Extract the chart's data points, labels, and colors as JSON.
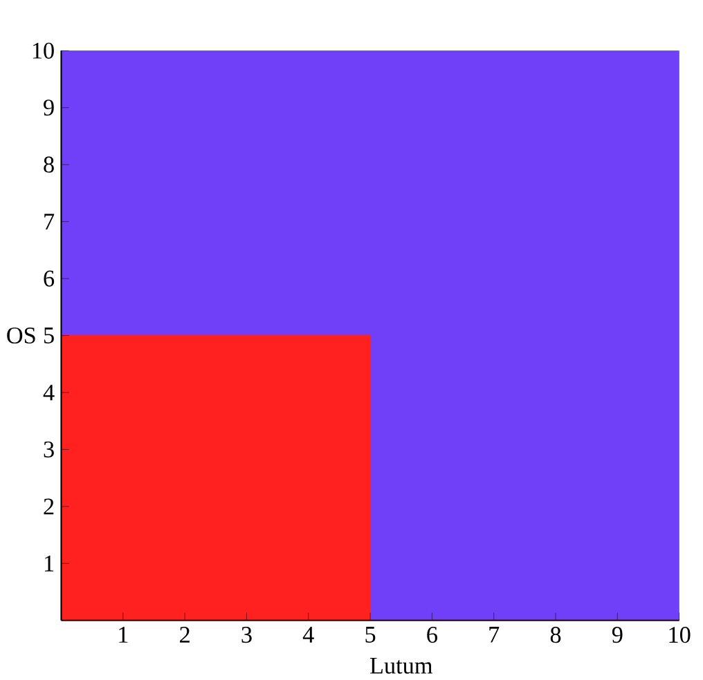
{
  "chart_data": {
    "type": "area",
    "stacked": true,
    "xlabel": "Lutum",
    "ylabel": "OS",
    "xlim": [
      0,
      10
    ],
    "ylim": [
      0,
      10
    ],
    "xticks": [
      1,
      2,
      3,
      4,
      5,
      6,
      7,
      8,
      9,
      10
    ],
    "yticks": [
      1,
      2,
      3,
      4,
      5,
      6,
      7,
      8,
      9,
      10
    ],
    "x": [
      0,
      5,
      5,
      10
    ],
    "series": [
      {
        "color": "#ff2020",
        "values": [
          5,
          5,
          0,
          0
        ]
      },
      {
        "color": "#7040f8",
        "values": [
          5,
          5,
          10,
          10
        ]
      }
    ]
  }
}
